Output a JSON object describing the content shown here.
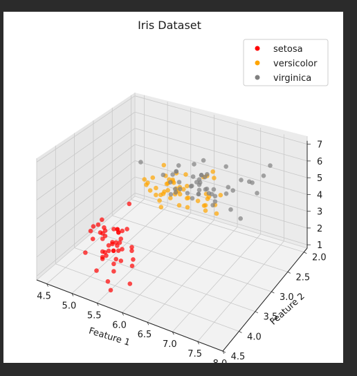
{
  "chart_data": {
    "type": "scatter",
    "title": "Iris Dataset",
    "xlabel": "Feature 1",
    "ylabel": "Feature 2",
    "zlabel": "",
    "xlim": [
      4.3,
      8.0
    ],
    "ylim": [
      1.9,
      4.5
    ],
    "zlim": [
      0.8,
      7.2
    ],
    "xticks": [
      "4.5",
      "5.0",
      "5.5",
      "6.0",
      "6.5",
      "7.0",
      "7.5",
      "8.0"
    ],
    "yticks": [
      "2.0",
      "2.5",
      "3.0",
      "3.5",
      "4.0",
      "4.5"
    ],
    "zticks": [
      "1",
      "2",
      "3",
      "4",
      "5",
      "6",
      "7"
    ],
    "grid": true,
    "legend_position": "top-right",
    "series": [
      {
        "name": "setosa",
        "color": "#ff0000",
        "points": [
          [
            5.1,
            3.5,
            1.4
          ],
          [
            4.9,
            3.0,
            1.4
          ],
          [
            4.7,
            3.2,
            1.3
          ],
          [
            4.6,
            3.1,
            1.5
          ],
          [
            5.0,
            3.6,
            1.4
          ],
          [
            5.4,
            3.9,
            1.7
          ],
          [
            4.6,
            3.4,
            1.4
          ],
          [
            5.0,
            3.4,
            1.5
          ],
          [
            4.4,
            2.9,
            1.4
          ],
          [
            4.9,
            3.1,
            1.5
          ],
          [
            5.4,
            3.7,
            1.5
          ],
          [
            4.8,
            3.4,
            1.6
          ],
          [
            4.8,
            3.0,
            1.4
          ],
          [
            4.3,
            3.0,
            1.1
          ],
          [
            5.8,
            4.0,
            1.2
          ],
          [
            5.7,
            4.4,
            1.5
          ],
          [
            5.4,
            3.9,
            1.3
          ],
          [
            5.1,
            3.5,
            1.4
          ],
          [
            5.7,
            3.8,
            1.7
          ],
          [
            5.1,
            3.8,
            1.5
          ],
          [
            5.4,
            3.4,
            1.7
          ],
          [
            5.1,
            3.7,
            1.5
          ],
          [
            4.6,
            3.6,
            1.0
          ],
          [
            5.1,
            3.3,
            1.7
          ],
          [
            4.8,
            3.4,
            1.9
          ],
          [
            5.0,
            3.0,
            1.6
          ],
          [
            5.0,
            3.4,
            1.6
          ],
          [
            5.2,
            3.5,
            1.5
          ],
          [
            5.2,
            3.4,
            1.4
          ],
          [
            4.7,
            3.2,
            1.6
          ],
          [
            4.8,
            3.1,
            1.6
          ],
          [
            5.4,
            3.4,
            1.5
          ],
          [
            5.2,
            4.1,
            1.5
          ],
          [
            5.5,
            4.2,
            1.4
          ],
          [
            4.9,
            3.1,
            1.5
          ],
          [
            5.0,
            3.2,
            1.2
          ],
          [
            5.5,
            3.5,
            1.3
          ],
          [
            4.4,
            3.0,
            1.3
          ],
          [
            5.1,
            3.4,
            1.5
          ],
          [
            5.0,
            3.5,
            1.3
          ],
          [
            4.5,
            2.3,
            1.3
          ],
          [
            4.4,
            3.2,
            1.3
          ],
          [
            5.0,
            3.5,
            1.6
          ],
          [
            5.1,
            3.8,
            1.9
          ],
          [
            4.8,
            3.0,
            1.4
          ],
          [
            5.1,
            3.8,
            1.6
          ],
          [
            4.6,
            3.2,
            1.4
          ],
          [
            5.3,
            3.7,
            1.5
          ],
          [
            5.0,
            3.3,
            1.4
          ]
        ]
      },
      {
        "name": "versicolor",
        "color": "#ffa500",
        "points": [
          [
            7.0,
            3.2,
            4.7
          ],
          [
            6.4,
            3.2,
            4.5
          ],
          [
            6.9,
            3.1,
            4.9
          ],
          [
            5.5,
            2.3,
            4.0
          ],
          [
            6.5,
            2.8,
            4.6
          ],
          [
            5.7,
            2.8,
            4.5
          ],
          [
            6.3,
            3.3,
            4.7
          ],
          [
            4.9,
            2.4,
            3.3
          ],
          [
            6.6,
            2.9,
            4.6
          ],
          [
            5.2,
            2.7,
            3.9
          ],
          [
            5.0,
            2.0,
            3.5
          ],
          [
            5.9,
            3.0,
            4.2
          ],
          [
            6.0,
            2.2,
            4.0
          ],
          [
            6.1,
            2.9,
            4.7
          ],
          [
            5.6,
            2.9,
            3.6
          ],
          [
            6.7,
            3.1,
            4.4
          ],
          [
            5.6,
            3.0,
            4.5
          ],
          [
            5.8,
            2.7,
            4.1
          ],
          [
            6.2,
            2.2,
            4.5
          ],
          [
            5.6,
            2.5,
            3.9
          ],
          [
            5.9,
            3.2,
            4.8
          ],
          [
            6.1,
            2.8,
            4.0
          ],
          [
            6.3,
            2.5,
            4.9
          ],
          [
            6.1,
            2.8,
            4.7
          ],
          [
            6.4,
            2.9,
            4.3
          ],
          [
            6.6,
            3.0,
            4.4
          ],
          [
            6.8,
            2.8,
            4.8
          ],
          [
            6.7,
            3.0,
            5.0
          ],
          [
            6.0,
            2.9,
            4.5
          ],
          [
            5.7,
            2.6,
            3.5
          ],
          [
            5.5,
            2.4,
            3.8
          ],
          [
            5.5,
            2.4,
            3.7
          ],
          [
            5.8,
            2.7,
            3.9
          ],
          [
            6.0,
            2.7,
            5.1
          ],
          [
            5.4,
            3.0,
            4.5
          ],
          [
            6.0,
            3.4,
            4.5
          ],
          [
            6.7,
            3.1,
            4.7
          ],
          [
            6.3,
            2.3,
            4.4
          ],
          [
            5.6,
            3.0,
            4.1
          ],
          [
            5.5,
            2.5,
            4.0
          ],
          [
            5.5,
            2.6,
            4.4
          ],
          [
            6.1,
            3.0,
            4.6
          ],
          [
            5.8,
            2.6,
            4.0
          ],
          [
            5.0,
            2.3,
            3.3
          ],
          [
            5.6,
            2.7,
            4.2
          ],
          [
            5.7,
            3.0,
            4.2
          ],
          [
            5.7,
            2.9,
            4.2
          ],
          [
            6.2,
            2.9,
            4.3
          ],
          [
            5.1,
            2.5,
            3.0
          ],
          [
            5.7,
            2.8,
            4.1
          ]
        ]
      },
      {
        "name": "virginica",
        "color": "#808080",
        "points": [
          [
            6.3,
            3.3,
            6.0
          ],
          [
            5.8,
            2.7,
            5.1
          ],
          [
            7.1,
            3.0,
            5.9
          ],
          [
            6.3,
            2.9,
            5.6
          ],
          [
            6.5,
            3.0,
            5.8
          ],
          [
            7.6,
            3.0,
            6.6
          ],
          [
            4.9,
            2.5,
            4.5
          ],
          [
            7.3,
            2.9,
            6.3
          ],
          [
            6.7,
            2.5,
            5.8
          ],
          [
            7.2,
            3.6,
            6.1
          ],
          [
            6.5,
            3.2,
            5.1
          ],
          [
            6.4,
            2.7,
            5.3
          ],
          [
            6.8,
            3.0,
            5.5
          ],
          [
            5.7,
            2.5,
            5.0
          ],
          [
            5.8,
            2.8,
            5.1
          ],
          [
            6.4,
            3.2,
            5.3
          ],
          [
            6.5,
            3.0,
            5.5
          ],
          [
            7.7,
            3.8,
            6.7
          ],
          [
            7.7,
            2.6,
            6.9
          ],
          [
            6.0,
            2.2,
            5.0
          ],
          [
            6.9,
            3.2,
            5.7
          ],
          [
            5.6,
            2.8,
            4.9
          ],
          [
            7.7,
            2.8,
            6.7
          ],
          [
            6.3,
            2.7,
            4.9
          ],
          [
            6.7,
            3.3,
            5.7
          ],
          [
            7.2,
            3.2,
            6.0
          ],
          [
            6.2,
            2.8,
            4.8
          ],
          [
            6.1,
            3.0,
            4.9
          ],
          [
            6.4,
            2.8,
            5.6
          ],
          [
            7.2,
            3.0,
            5.8
          ],
          [
            7.4,
            2.8,
            6.1
          ],
          [
            7.9,
            3.8,
            6.4
          ],
          [
            6.4,
            2.8,
            5.6
          ],
          [
            6.3,
            2.8,
            5.1
          ],
          [
            6.1,
            2.6,
            5.6
          ],
          [
            7.7,
            3.0,
            6.1
          ],
          [
            6.3,
            3.4,
            5.6
          ],
          [
            6.4,
            3.1,
            5.5
          ],
          [
            6.0,
            3.0,
            4.8
          ],
          [
            6.9,
            3.1,
            5.4
          ],
          [
            6.7,
            3.1,
            5.6
          ],
          [
            6.9,
            3.1,
            5.1
          ],
          [
            5.8,
            2.7,
            5.1
          ],
          [
            6.8,
            3.2,
            5.9
          ],
          [
            6.7,
            3.3,
            5.7
          ],
          [
            6.7,
            3.0,
            5.2
          ],
          [
            6.3,
            2.5,
            5.0
          ],
          [
            6.5,
            3.0,
            5.2
          ],
          [
            6.2,
            3.4,
            5.4
          ],
          [
            5.9,
            3.0,
            5.1
          ]
        ]
      }
    ]
  }
}
